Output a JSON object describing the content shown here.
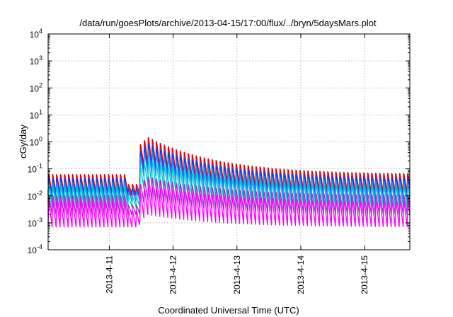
{
  "chart_data": {
    "type": "line",
    "title": "/data/run/goesPlots/archive/2013-04-15/17:00/flux/../bryn/5daysMars.plot",
    "xlabel": "Coordinated Universal Time (UTC)",
    "ylabel": "cGy/day",
    "yscale": "log",
    "ylim": [
      0.0001,
      10000
    ],
    "xlim": [
      "2013-04-10T01:00",
      "2013-04-15T17:00"
    ],
    "grid": true,
    "legend": "none",
    "y_ticks": [
      {
        "value": 0.0001,
        "base": "10",
        "exp": "-4"
      },
      {
        "value": 0.001,
        "base": "10",
        "exp": "-3"
      },
      {
        "value": 0.01,
        "base": "10",
        "exp": "-2"
      },
      {
        "value": 0.1,
        "base": "10",
        "exp": "-1"
      },
      {
        "value": 1,
        "base": "10",
        "exp": "0"
      },
      {
        "value": 10,
        "base": "10",
        "exp": "1"
      },
      {
        "value": 100,
        "base": "10",
        "exp": "2"
      },
      {
        "value": 1000,
        "base": "10",
        "exp": "3"
      },
      {
        "value": 10000,
        "base": "10",
        "exp": "4"
      }
    ],
    "x_ticks": [
      {
        "value": "2013-04-11T00:00",
        "label": "2013-4-11"
      },
      {
        "value": "2013-04-12T00:00",
        "label": "2013-4-12"
      },
      {
        "value": "2013-04-13T00:00",
        "label": "2013-4-13"
      },
      {
        "value": "2013-04-14T00:00",
        "label": "2013-4-14"
      },
      {
        "value": "2013-04-15T00:00",
        "label": "2013-4-15"
      }
    ],
    "event_onset": "2013-04-11T11:30",
    "event_peak": "2013-04-11T14:30",
    "series": [
      {
        "color": "#e00000",
        "quiet_high": 0.07,
        "quiet_low": 0.012,
        "event_peak": 1.8,
        "sawtooth_period_hours": 1.5
      },
      {
        "color": "#c81e6e",
        "quiet_high": 0.055,
        "quiet_low": 0.006,
        "event_peak": 1.2,
        "sawtooth_period_hours": 1.5
      },
      {
        "color": "#1f3fd6",
        "quiet_high": 0.05,
        "quiet_low": 0.01,
        "event_peak": 1.0,
        "sawtooth_period_hours": 1.5
      },
      {
        "color": "#1e90ff",
        "quiet_high": 0.035,
        "quiet_low": 0.007,
        "event_peak": 0.6,
        "sawtooth_period_hours": 1.5
      },
      {
        "color": "#00c8d2",
        "quiet_high": 0.025,
        "quiet_low": 0.004,
        "event_peak": 0.25,
        "sawtooth_period_hours": 1.5
      },
      {
        "color": "#9a35c4",
        "quiet_high": 0.012,
        "quiet_low": 0.002,
        "event_peak": 0.06,
        "sawtooth_period_hours": 1.5
      },
      {
        "color": "#ff00ff",
        "quiet_high": 0.008,
        "quiet_low": 0.0007,
        "event_peak": 0.03,
        "sawtooth_period_hours": 1.5
      }
    ]
  }
}
